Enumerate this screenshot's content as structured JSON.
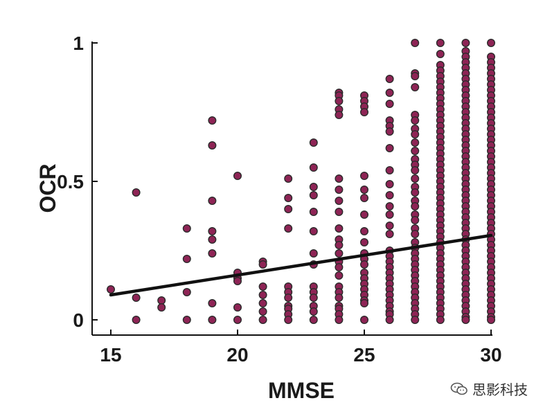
{
  "chart_data": {
    "type": "scatter",
    "title": "",
    "xlabel": "MMSE",
    "ylabel": "OCR",
    "xlim": [
      15,
      30
    ],
    "ylim": [
      0,
      1
    ],
    "xticks": [
      "15",
      "20",
      "25",
      "30"
    ],
    "yticks": [
      "0",
      "0.5",
      "1"
    ],
    "grid": false,
    "point_color": "#8e2455",
    "point_edge_color": "#2b2b2b",
    "line_color": "#111111",
    "trendline": {
      "type": "linear",
      "x": [
        15,
        30
      ],
      "y": [
        0.09,
        0.305
      ]
    },
    "points": [
      [
        15,
        0.11
      ],
      [
        16,
        0.46
      ],
      [
        16,
        0.08
      ],
      [
        16,
        0.0
      ],
      [
        17,
        0.07
      ],
      [
        17,
        0.045
      ],
      [
        18,
        0.33
      ],
      [
        18,
        0.22
      ],
      [
        18,
        0.1
      ],
      [
        18,
        0.0
      ],
      [
        19,
        0.72
      ],
      [
        19,
        0.63
      ],
      [
        19,
        0.43
      ],
      [
        19,
        0.32
      ],
      [
        19,
        0.29
      ],
      [
        19,
        0.24
      ],
      [
        19,
        0.06
      ],
      [
        19,
        0.0
      ],
      [
        20,
        0.52
      ],
      [
        20,
        0.17
      ],
      [
        20,
        0.15
      ],
      [
        20,
        0.14
      ],
      [
        20,
        0.045
      ],
      [
        20,
        0.0
      ],
      [
        21,
        0.21
      ],
      [
        21,
        0.2
      ],
      [
        21,
        0.12
      ],
      [
        21,
        0.09
      ],
      [
        21,
        0.06
      ],
      [
        21,
        0.03
      ],
      [
        21,
        0.0
      ],
      [
        22,
        0.51
      ],
      [
        22,
        0.44
      ],
      [
        22,
        0.4
      ],
      [
        22,
        0.33
      ],
      [
        22,
        0.12
      ],
      [
        22,
        0.1
      ],
      [
        22,
        0.08
      ],
      [
        22,
        0.05
      ],
      [
        22,
        0.04
      ],
      [
        22,
        0.02
      ],
      [
        22,
        0.0
      ],
      [
        23,
        0.64
      ],
      [
        23,
        0.55
      ],
      [
        23,
        0.48
      ],
      [
        23,
        0.45
      ],
      [
        23,
        0.39
      ],
      [
        23,
        0.32
      ],
      [
        23,
        0.24
      ],
      [
        23,
        0.2
      ],
      [
        23,
        0.12
      ],
      [
        23,
        0.1
      ],
      [
        23,
        0.08
      ],
      [
        23,
        0.05
      ],
      [
        23,
        0.03
      ],
      [
        23,
        0.0
      ],
      [
        24,
        0.82
      ],
      [
        24,
        0.81
      ],
      [
        24,
        0.79
      ],
      [
        24,
        0.76
      ],
      [
        24,
        0.74
      ],
      [
        24,
        0.51
      ],
      [
        24,
        0.47
      ],
      [
        24,
        0.43
      ],
      [
        24,
        0.39
      ],
      [
        24,
        0.33
      ],
      [
        24,
        0.29
      ],
      [
        24,
        0.27
      ],
      [
        24,
        0.24
      ],
      [
        24,
        0.21
      ],
      [
        24,
        0.19
      ],
      [
        24,
        0.16
      ],
      [
        24,
        0.12
      ],
      [
        24,
        0.1
      ],
      [
        24,
        0.08
      ],
      [
        24,
        0.05
      ],
      [
        24,
        0.04
      ],
      [
        24,
        0.02
      ],
      [
        24,
        0.0
      ],
      [
        25,
        0.81
      ],
      [
        25,
        0.79
      ],
      [
        25,
        0.77
      ],
      [
        25,
        0.75
      ],
      [
        25,
        0.52
      ],
      [
        25,
        0.47
      ],
      [
        25,
        0.44
      ],
      [
        25,
        0.38
      ],
      [
        25,
        0.32
      ],
      [
        25,
        0.28
      ],
      [
        25,
        0.24
      ],
      [
        25,
        0.22
      ],
      [
        25,
        0.2
      ],
      [
        25,
        0.17
      ],
      [
        25,
        0.15
      ],
      [
        25,
        0.13
      ],
      [
        25,
        0.11
      ],
      [
        25,
        0.09
      ],
      [
        25,
        0.07
      ],
      [
        25,
        0.06
      ],
      [
        25,
        0.0
      ],
      [
        26,
        0.87
      ],
      [
        26,
        0.82
      ],
      [
        26,
        0.78
      ],
      [
        26,
        0.72
      ],
      [
        26,
        0.7
      ],
      [
        26,
        0.68
      ],
      [
        26,
        0.62
      ],
      [
        26,
        0.54
      ],
      [
        26,
        0.49
      ],
      [
        26,
        0.45
      ],
      [
        26,
        0.41
      ],
      [
        26,
        0.38
      ],
      [
        26,
        0.34
      ],
      [
        26,
        0.31
      ],
      [
        26,
        0.25
      ],
      [
        26,
        0.23
      ],
      [
        26,
        0.21
      ],
      [
        26,
        0.19
      ],
      [
        26,
        0.17
      ],
      [
        26,
        0.15
      ],
      [
        26,
        0.13
      ],
      [
        26,
        0.11
      ],
      [
        26,
        0.09
      ],
      [
        26,
        0.07
      ],
      [
        26,
        0.05
      ],
      [
        26,
        0.03
      ],
      [
        26,
        0.02
      ],
      [
        26,
        0.0
      ],
      [
        27,
        1.0
      ],
      [
        27,
        0.89
      ],
      [
        27,
        0.88
      ],
      [
        27,
        0.84
      ],
      [
        27,
        0.74
      ],
      [
        27,
        0.72
      ],
      [
        27,
        0.69
      ],
      [
        27,
        0.67
      ],
      [
        27,
        0.64
      ],
      [
        27,
        0.61
      ],
      [
        27,
        0.58
      ],
      [
        27,
        0.56
      ],
      [
        27,
        0.54
      ],
      [
        27,
        0.51
      ],
      [
        27,
        0.48
      ],
      [
        27,
        0.46
      ],
      [
        27,
        0.43
      ],
      [
        27,
        0.41
      ],
      [
        27,
        0.38
      ],
      [
        27,
        0.36
      ],
      [
        27,
        0.33
      ],
      [
        27,
        0.31
      ],
      [
        27,
        0.28
      ],
      [
        27,
        0.26
      ],
      [
        27,
        0.24
      ],
      [
        27,
        0.22
      ],
      [
        27,
        0.2
      ],
      [
        27,
        0.18
      ],
      [
        27,
        0.16
      ],
      [
        27,
        0.14
      ],
      [
        27,
        0.12
      ],
      [
        27,
        0.1
      ],
      [
        27,
        0.08
      ],
      [
        27,
        0.06
      ],
      [
        27,
        0.04
      ],
      [
        27,
        0.02
      ],
      [
        27,
        0.0
      ],
      [
        28,
        1.0
      ],
      [
        28,
        0.96
      ],
      [
        28,
        0.92
      ],
      [
        28,
        0.9
      ],
      [
        28,
        0.88
      ],
      [
        28,
        0.86
      ],
      [
        28,
        0.84
      ],
      [
        28,
        0.82
      ],
      [
        28,
        0.8
      ],
      [
        28,
        0.78
      ],
      [
        28,
        0.76
      ],
      [
        28,
        0.74
      ],
      [
        28,
        0.72
      ],
      [
        28,
        0.7
      ],
      [
        28,
        0.68
      ],
      [
        28,
        0.66
      ],
      [
        28,
        0.64
      ],
      [
        28,
        0.62
      ],
      [
        28,
        0.6
      ],
      [
        28,
        0.58
      ],
      [
        28,
        0.56
      ],
      [
        28,
        0.54
      ],
      [
        28,
        0.52
      ],
      [
        28,
        0.5
      ],
      [
        28,
        0.48
      ],
      [
        28,
        0.46
      ],
      [
        28,
        0.44
      ],
      [
        28,
        0.42
      ],
      [
        28,
        0.4
      ],
      [
        28,
        0.38
      ],
      [
        28,
        0.36
      ],
      [
        28,
        0.34
      ],
      [
        28,
        0.32
      ],
      [
        28,
        0.3
      ],
      [
        28,
        0.28
      ],
      [
        28,
        0.26
      ],
      [
        28,
        0.24
      ],
      [
        28,
        0.22
      ],
      [
        28,
        0.2
      ],
      [
        28,
        0.18
      ],
      [
        28,
        0.16
      ],
      [
        28,
        0.14
      ],
      [
        28,
        0.12
      ],
      [
        28,
        0.1
      ],
      [
        28,
        0.08
      ],
      [
        28,
        0.06
      ],
      [
        28,
        0.04
      ],
      [
        28,
        0.02
      ],
      [
        28,
        0.0
      ],
      [
        29,
        1.0
      ],
      [
        29,
        0.97
      ],
      [
        29,
        0.95
      ],
      [
        29,
        0.93
      ],
      [
        29,
        0.91
      ],
      [
        29,
        0.89
      ],
      [
        29,
        0.87
      ],
      [
        29,
        0.85
      ],
      [
        29,
        0.83
      ],
      [
        29,
        0.81
      ],
      [
        29,
        0.79
      ],
      [
        29,
        0.77
      ],
      [
        29,
        0.75
      ],
      [
        29,
        0.73
      ],
      [
        29,
        0.71
      ],
      [
        29,
        0.69
      ],
      [
        29,
        0.67
      ],
      [
        29,
        0.65
      ],
      [
        29,
        0.63
      ],
      [
        29,
        0.61
      ],
      [
        29,
        0.59
      ],
      [
        29,
        0.57
      ],
      [
        29,
        0.55
      ],
      [
        29,
        0.53
      ],
      [
        29,
        0.51
      ],
      [
        29,
        0.49
      ],
      [
        29,
        0.47
      ],
      [
        29,
        0.45
      ],
      [
        29,
        0.43
      ],
      [
        29,
        0.41
      ],
      [
        29,
        0.39
      ],
      [
        29,
        0.37
      ],
      [
        29,
        0.35
      ],
      [
        29,
        0.33
      ],
      [
        29,
        0.31
      ],
      [
        29,
        0.29
      ],
      [
        29,
        0.27
      ],
      [
        29,
        0.25
      ],
      [
        29,
        0.23
      ],
      [
        29,
        0.21
      ],
      [
        29,
        0.19
      ],
      [
        29,
        0.17
      ],
      [
        29,
        0.15
      ],
      [
        29,
        0.13
      ],
      [
        29,
        0.11
      ],
      [
        29,
        0.09
      ],
      [
        29,
        0.07
      ],
      [
        29,
        0.05
      ],
      [
        29,
        0.03
      ],
      [
        29,
        0.01
      ],
      [
        29,
        0.0
      ],
      [
        30,
        1.0
      ],
      [
        30,
        0.95
      ],
      [
        30,
        0.93
      ],
      [
        30,
        0.91
      ],
      [
        30,
        0.89
      ],
      [
        30,
        0.87
      ],
      [
        30,
        0.85
      ],
      [
        30,
        0.83
      ],
      [
        30,
        0.81
      ],
      [
        30,
        0.79
      ],
      [
        30,
        0.77
      ],
      [
        30,
        0.75
      ],
      [
        30,
        0.73
      ],
      [
        30,
        0.71
      ],
      [
        30,
        0.69
      ],
      [
        30,
        0.67
      ],
      [
        30,
        0.65
      ],
      [
        30,
        0.63
      ],
      [
        30,
        0.61
      ],
      [
        30,
        0.59
      ],
      [
        30,
        0.57
      ],
      [
        30,
        0.55
      ],
      [
        30,
        0.53
      ],
      [
        30,
        0.51
      ],
      [
        30,
        0.49
      ],
      [
        30,
        0.47
      ],
      [
        30,
        0.45
      ],
      [
        30,
        0.43
      ],
      [
        30,
        0.41
      ],
      [
        30,
        0.39
      ],
      [
        30,
        0.37
      ],
      [
        30,
        0.35
      ],
      [
        30,
        0.33
      ],
      [
        30,
        0.31
      ],
      [
        30,
        0.29
      ],
      [
        30,
        0.27
      ],
      [
        30,
        0.25
      ],
      [
        30,
        0.23
      ],
      [
        30,
        0.21
      ],
      [
        30,
        0.19
      ],
      [
        30,
        0.17
      ],
      [
        30,
        0.15
      ],
      [
        30,
        0.13
      ],
      [
        30,
        0.11
      ],
      [
        30,
        0.09
      ],
      [
        30,
        0.07
      ],
      [
        30,
        0.05
      ],
      [
        30,
        0.03
      ],
      [
        30,
        0.01
      ],
      [
        30,
        0.0
      ]
    ]
  },
  "watermark": {
    "text": "思影科技",
    "icon": "wechat-icon"
  }
}
